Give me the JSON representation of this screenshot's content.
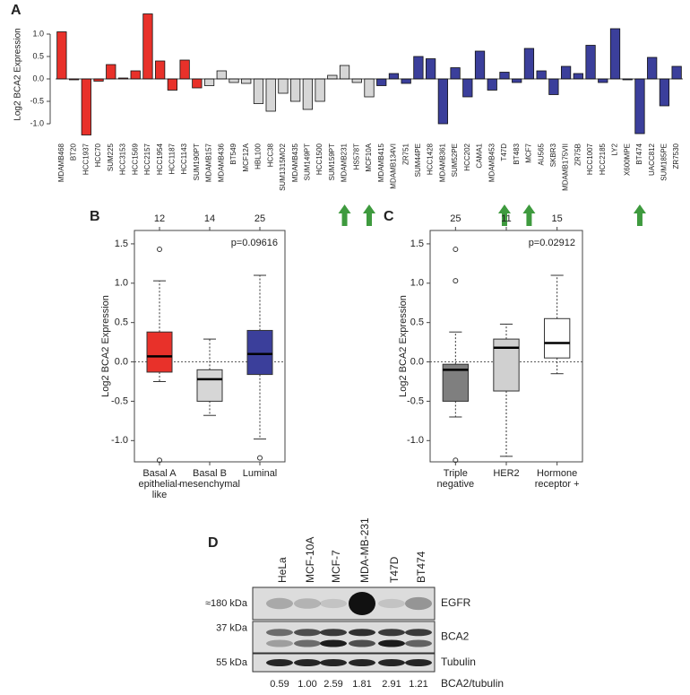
{
  "chart_data": [
    {
      "type": "bar",
      "panel": "A",
      "ylabel": "Log2 BCA2 Expression",
      "categories": [
        "MDAMB468",
        "BT20",
        "HCC1937",
        "HCC70",
        "SUM225",
        "HCC3153",
        "HCC1569",
        "HCC2157",
        "HCC1954",
        "HCC1187",
        "HCC1143",
        "SUM190PT",
        "MDAMB157",
        "MDAMB436",
        "BT549",
        "MCF12A",
        "HBL100",
        "HCC38",
        "SUM1315MO2",
        "MDAMB435",
        "SUM149PT",
        "HCC1500",
        "SUM159PT",
        "MDAMB231",
        "HS578T",
        "MCF10A",
        "MDAMB415",
        "MDAMB134VI",
        "ZR751",
        "SUM44PE",
        "HCC1428",
        "MDAMB361",
        "SUM52PE",
        "HCC202",
        "CAMA1",
        "MDAMB453",
        "T47D",
        "BT483",
        "MCF7",
        "AU565",
        "SKBR3",
        "MDAMB175VII",
        "ZR75B",
        "HCC1007",
        "HCC2185",
        "LY2",
        "X600MPE",
        "BT474",
        "UACC812",
        "SUM185PE",
        "ZR7530"
      ],
      "values": [
        1.05,
        -0.02,
        -1.25,
        -0.05,
        0.32,
        0.02,
        0.18,
        1.45,
        0.4,
        -0.25,
        0.42,
        -0.2,
        -0.15,
        0.18,
        -0.08,
        -0.1,
        -0.55,
        -0.72,
        -0.32,
        -0.5,
        -0.68,
        -0.5,
        0.08,
        0.3,
        -0.08,
        -0.4,
        -0.15,
        0.12,
        -0.1,
        0.5,
        0.45,
        -1.0,
        0.25,
        -0.4,
        0.62,
        -0.25,
        0.15,
        -0.08,
        0.68,
        0.18,
        -0.35,
        0.28,
        0.12,
        0.75,
        -0.08,
        1.12,
        -0.02,
        -1.22,
        0.48,
        -0.6,
        0.28
      ],
      "colors": [
        "#e8312a",
        "#e8312a",
        "#e8312a",
        "#e8312a",
        "#e8312a",
        "#e8312a",
        "#e8312a",
        "#e8312a",
        "#e8312a",
        "#e8312a",
        "#e8312a",
        "#e8312a",
        "#d6d6d6",
        "#d6d6d6",
        "#d6d6d6",
        "#d6d6d6",
        "#d6d6d6",
        "#d6d6d6",
        "#d6d6d6",
        "#d6d6d6",
        "#d6d6d6",
        "#d6d6d6",
        "#d6d6d6",
        "#d6d6d6",
        "#d6d6d6",
        "#d6d6d6",
        "#3b3f9b",
        "#3b3f9b",
        "#3b3f9b",
        "#3b3f9b",
        "#3b3f9b",
        "#3b3f9b",
        "#3b3f9b",
        "#3b3f9b",
        "#3b3f9b",
        "#3b3f9b",
        "#3b3f9b",
        "#3b3f9b",
        "#3b3f9b",
        "#3b3f9b",
        "#3b3f9b",
        "#3b3f9b",
        "#3b3f9b",
        "#3b3f9b",
        "#3b3f9b",
        "#3b3f9b",
        "#3b3f9b",
        "#3b3f9b",
        "#3b3f9b",
        "#3b3f9b",
        "#3b3f9b"
      ],
      "arrow_indices": [
        23,
        25,
        36,
        38,
        47
      ],
      "arrow_color": "#3e9a3e",
      "ylim": [
        -1.3,
        1.5
      ],
      "yticks": [
        {
          "value": -1,
          "label": "-1.0"
        },
        {
          "value": -0.5,
          "label": "-0.5"
        },
        {
          "value": 0,
          "label": "0.0"
        },
        {
          "value": 0.5,
          "label": "0.5"
        },
        {
          "value": 1,
          "label": "1.0"
        }
      ]
    },
    {
      "type": "box",
      "panel": "B",
      "ylabel": "Log2 BCA2 Expression",
      "annotation": "p=0.09616",
      "categories": [
        "Basal A\nepithelial-\nlike",
        "Basal B\nmesenchymal",
        "Luminal"
      ],
      "counts": [
        12,
        14,
        25
      ],
      "reference_line": 0,
      "boxes": [
        {
          "whislo": -0.25,
          "q1": -0.13,
          "med": 0.07,
          "q3": 0.38,
          "whishi": 1.03,
          "fliers": [
            1.43,
            -1.25
          ],
          "color": "#e8312a"
        },
        {
          "whislo": -0.68,
          "q1": -0.5,
          "med": -0.22,
          "q3": -0.1,
          "whishi": 0.29,
          "fliers": [],
          "color": "#d6d6d6"
        },
        {
          "whislo": -0.98,
          "q1": -0.16,
          "med": 0.1,
          "q3": 0.4,
          "whishi": 1.1,
          "fliers": [
            -1.22
          ],
          "color": "#3b3f9b"
        }
      ],
      "ylim": [
        -1.27,
        1.67
      ],
      "yticks": [
        {
          "value": -1,
          "label": "-1.0"
        },
        {
          "value": -0.5,
          "label": "-0.5"
        },
        {
          "value": 0,
          "label": "0.0"
        },
        {
          "value": 0.5,
          "label": "0.5"
        },
        {
          "value": 1,
          "label": "1.0"
        },
        {
          "value": 1.5,
          "label": "1.5"
        }
      ]
    },
    {
      "type": "box",
      "panel": "C",
      "ylabel": "Log2 BCA2 Expression",
      "annotation": "p=0.02912",
      "categories": [
        "Triple\nnegative",
        "HER2",
        "Hormone\nreceptor +"
      ],
      "counts": [
        25,
        11,
        15
      ],
      "reference_line": 0,
      "boxes": [
        {
          "whislo": -0.7,
          "q1": -0.5,
          "med": -0.1,
          "q3": -0.03,
          "whishi": 0.38,
          "fliers": [
            1.43,
            1.03,
            -1.25
          ],
          "color": "#7f7f7f"
        },
        {
          "whislo": -1.2,
          "q1": -0.37,
          "med": 0.18,
          "q3": 0.29,
          "whishi": 0.48,
          "fliers": [],
          "color": "#d0d0d0"
        },
        {
          "whislo": -0.15,
          "q1": 0.05,
          "med": 0.24,
          "q3": 0.55,
          "whishi": 1.1,
          "fliers": [],
          "color": "#ffffff"
        }
      ],
      "ylim": [
        -1.27,
        1.67
      ],
      "yticks": [
        {
          "value": -1,
          "label": "-1.0"
        },
        {
          "value": -0.5,
          "label": "-0.5"
        },
        {
          "value": 0,
          "label": "0.0"
        },
        {
          "value": 0.5,
          "label": "0.5"
        },
        {
          "value": 1,
          "label": "1.0"
        },
        {
          "value": 1.5,
          "label": "1.5"
        }
      ]
    }
  ],
  "blot": {
    "panel": "D",
    "lanes": [
      "HeLa",
      "MCF-10A",
      "MCF-7",
      "MDA-MB-231",
      "T47D",
      "BT474"
    ],
    "rows": [
      {
        "size": "≈180 kDa",
        "protein": "EGFR"
      },
      {
        "size": "37 kDa",
        "protein": "BCA2"
      },
      {
        "size": "55 kDa",
        "protein": "Tubulin"
      }
    ],
    "ratios": [
      "0.59",
      "1.00",
      "2.59",
      "1.81",
      "2.91",
      "1.21"
    ],
    "ratio_label": "BCA2/tubulin"
  }
}
